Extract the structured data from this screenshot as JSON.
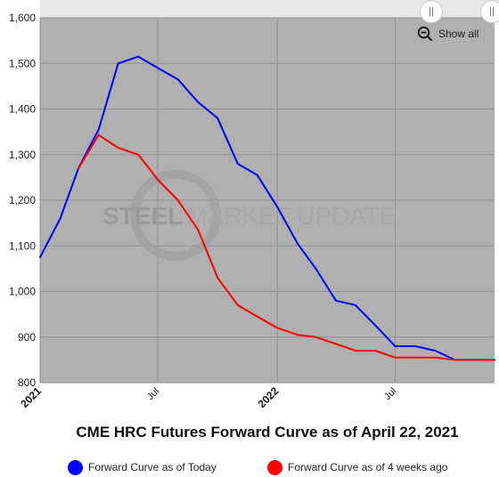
{
  "chart_data": {
    "type": "line",
    "title": "CME HRC Futures Forward Curve as of April 22, 2021",
    "xlabel": "",
    "ylabel": "",
    "ylim": [
      800,
      1600
    ],
    "yticks": [
      "800",
      "900",
      "1,000",
      "1,100",
      "1,200",
      "1,300",
      "1,400",
      "1,500",
      "1,600"
    ],
    "xticks": [
      {
        "label": "2021",
        "date": "2021-01-01",
        "bold": true
      },
      {
        "label": "Jul",
        "date": "2021-07-01",
        "bold": false
      },
      {
        "label": "2022",
        "date": "2022-01-01",
        "bold": true
      },
      {
        "label": "Jul",
        "date": "2022-07-01",
        "bold": false
      }
    ],
    "xrange": [
      "2021-01-01",
      "2022-12-01"
    ],
    "grid": true,
    "legend_position": "bottom",
    "series": [
      {
        "name": "Forward Curve as of Today",
        "color": "#0000ff",
        "points": [
          [
            "2021-01-01",
            1075
          ],
          [
            "2021-02-01",
            1160
          ],
          [
            "2021-03-01",
            1270
          ],
          [
            "2021-04-01",
            1355
          ],
          [
            "2021-05-01",
            1500
          ],
          [
            "2021-06-01",
            1515
          ],
          [
            "2021-07-01",
            1490
          ],
          [
            "2021-08-01",
            1465
          ],
          [
            "2021-09-01",
            1415
          ],
          [
            "2021-10-01",
            1380
          ],
          [
            "2021-11-01",
            1280
          ],
          [
            "2021-12-01",
            1255
          ],
          [
            "2022-01-01",
            1185
          ],
          [
            "2022-02-01",
            1105
          ],
          [
            "2022-03-01",
            1050
          ],
          [
            "2022-04-01",
            980
          ],
          [
            "2022-05-01",
            970
          ],
          [
            "2022-06-01",
            925
          ],
          [
            "2022-07-01",
            880
          ],
          [
            "2022-08-01",
            880
          ],
          [
            "2022-09-01",
            870
          ],
          [
            "2022-10-01",
            850
          ],
          [
            "2022-11-01",
            850
          ],
          [
            "2022-12-01",
            850
          ]
        ]
      },
      {
        "name": "Forward Curve as of 4 weeks ago",
        "color": "#ff0000",
        "points": [
          [
            "2021-03-01",
            1270
          ],
          [
            "2021-04-01",
            1343
          ],
          [
            "2021-05-01",
            1315
          ],
          [
            "2021-06-01",
            1300
          ],
          [
            "2021-07-01",
            1245
          ],
          [
            "2021-08-01",
            1200
          ],
          [
            "2021-09-01",
            1135
          ],
          [
            "2021-10-01",
            1030
          ],
          [
            "2021-11-01",
            970
          ],
          [
            "2021-12-01",
            945
          ],
          [
            "2022-01-01",
            920
          ],
          [
            "2022-02-01",
            905
          ],
          [
            "2022-03-01",
            900
          ],
          [
            "2022-04-01",
            885
          ],
          [
            "2022-05-01",
            870
          ],
          [
            "2022-06-01",
            870
          ],
          [
            "2022-07-01",
            855
          ],
          [
            "2022-08-01",
            855
          ],
          [
            "2022-09-01",
            855
          ],
          [
            "2022-10-01",
            850
          ],
          [
            "2022-11-01",
            850
          ],
          [
            "2022-12-01",
            850
          ]
        ]
      }
    ]
  },
  "watermark": {
    "bold": "STEEL",
    "rest": "MARKET UPDATE"
  },
  "controls": {
    "show_all": "Show all",
    "zoom_icon": "zoom-out-icon"
  },
  "colors": {
    "plot_bg": "#b0b0b0",
    "navigator_bg": "#e8e8e8"
  }
}
